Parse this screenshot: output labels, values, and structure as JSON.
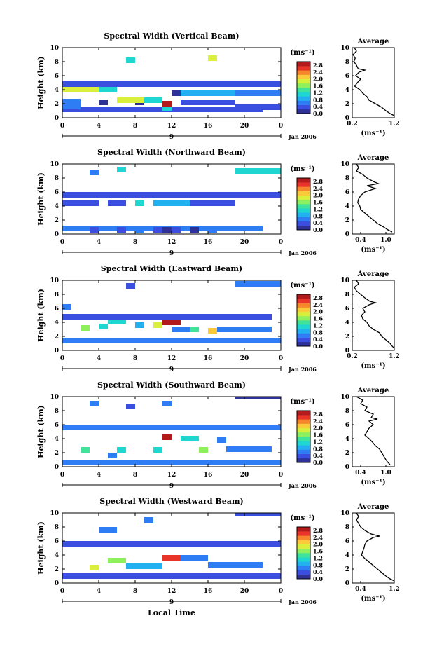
{
  "chart_data": {
    "type": "heatmap",
    "xlabel": "Local Time",
    "ylabel": "Height (km)",
    "x_range": [
      0,
      24
    ],
    "x_ticks": [
      "0",
      "4",
      "8",
      "12",
      "16",
      "20",
      "0"
    ],
    "date_labels": [
      "9",
      "Jan 2006"
    ],
    "y_range": [
      0,
      10
    ],
    "y_ticks": [
      "0",
      "2",
      "4",
      "6",
      "8",
      "10"
    ],
    "colorbar": {
      "unit": "(ms⁻¹)",
      "range": [
        0,
        3.0
      ],
      "ticks": [
        "0.0",
        "0.4",
        "0.8",
        "1.2",
        "1.6",
        "2.0",
        "2.4",
        "2.8"
      ],
      "colors": [
        "#2e3196",
        "#3a4fe0",
        "#2f7df5",
        "#22b0f0",
        "#20d6d0",
        "#3fe39a",
        "#8ef05b",
        "#d9ef3c",
        "#fbc93a",
        "#f6862c",
        "#e9342a",
        "#b21a1c"
      ]
    },
    "average_panel": {
      "title": "Average",
      "xlabel": "(ms⁻¹)",
      "y_range": [
        0,
        10
      ],
      "y_ticks": [
        "0",
        "2",
        "4",
        "6",
        "8",
        "10"
      ]
    },
    "panels": [
      {
        "title": "Spectral Width (Vertical Beam)",
        "avg_x_range": [
          0.2,
          1.2
        ],
        "avg_x_ticks": [
          "0.2",
          "1.2"
        ],
        "average_profile": [
          [
            0.25,
            10
          ],
          [
            0.3,
            9.5
          ],
          [
            0.22,
            9
          ],
          [
            0.27,
            8.5
          ],
          [
            0.24,
            8
          ],
          [
            0.3,
            7.5
          ],
          [
            0.34,
            7
          ],
          [
            0.5,
            6.8
          ],
          [
            0.36,
            6.5
          ],
          [
            0.28,
            6
          ],
          [
            0.4,
            5.5
          ],
          [
            0.32,
            5
          ],
          [
            0.26,
            4.5
          ],
          [
            0.38,
            4
          ],
          [
            0.45,
            3.5
          ],
          [
            0.55,
            3
          ],
          [
            0.6,
            2.5
          ],
          [
            0.75,
            2
          ],
          [
            0.9,
            1.5
          ],
          [
            1.0,
            1
          ],
          [
            1.1,
            0.6
          ],
          [
            1.2,
            0.3
          ]
        ],
        "cells": [
          [
            0,
            1.2,
            22,
            0.4
          ],
          [
            0,
            1.6,
            2,
            0.6
          ],
          [
            0,
            2.3,
            2,
            0.5
          ],
          [
            4,
            2.2,
            1,
            0.2
          ],
          [
            8,
            2.2,
            1,
            0.1
          ],
          [
            11,
            1.4,
            1,
            1.0
          ],
          [
            12,
            1.2,
            1,
            0.4
          ],
          [
            13,
            2.2,
            6,
            0.4
          ],
          [
            19,
            1.5,
            5,
            0.4
          ],
          [
            0,
            4.0,
            4,
            1.8
          ],
          [
            4,
            4.0,
            2,
            1.2
          ],
          [
            6,
            2.5,
            3,
            1.8
          ],
          [
            9,
            2.5,
            2,
            1.2
          ],
          [
            11,
            2.0,
            1,
            3.0
          ],
          [
            12,
            3.5,
            1,
            0.2
          ],
          [
            13,
            3.5,
            6,
            0.8
          ],
          [
            19,
            3.5,
            5,
            0.6
          ],
          [
            0,
            4.8,
            24,
            0.4
          ],
          [
            7,
            8.2,
            1,
            1.2
          ],
          [
            16,
            8.5,
            1,
            1.8
          ]
        ]
      },
      {
        "title": "Spectral Width (Northward Beam)",
        "avg_x_range": [
          0.2,
          1.2
        ],
        "avg_x_ticks": [
          "0.4",
          "1.0"
        ],
        "average_profile": [
          [
            0.3,
            10
          ],
          [
            0.35,
            9.5
          ],
          [
            0.3,
            9
          ],
          [
            0.45,
            8.5
          ],
          [
            0.55,
            8
          ],
          [
            0.7,
            7.5
          ],
          [
            0.82,
            7.2
          ],
          [
            0.55,
            6.9
          ],
          [
            0.75,
            6.5
          ],
          [
            0.5,
            6
          ],
          [
            0.4,
            5.5
          ],
          [
            0.35,
            5
          ],
          [
            0.33,
            4.5
          ],
          [
            0.38,
            4
          ],
          [
            0.4,
            3.5
          ],
          [
            0.5,
            3
          ],
          [
            0.6,
            2.5
          ],
          [
            0.7,
            2
          ],
          [
            0.8,
            1.5
          ],
          [
            0.95,
            1
          ],
          [
            1.05,
            0.6
          ],
          [
            1.15,
            0.3
          ]
        ],
        "cells": [
          [
            0,
            0.8,
            22,
            0.6
          ],
          [
            3,
            0.6,
            1,
            0.3
          ],
          [
            6,
            0.6,
            1,
            0.4
          ],
          [
            8,
            0.6,
            1,
            0.5
          ],
          [
            10,
            0.6,
            1,
            0.3
          ],
          [
            11,
            0.6,
            1,
            0.2
          ],
          [
            12,
            0.6,
            1,
            0.4
          ],
          [
            14,
            0.6,
            1,
            0.2
          ],
          [
            16,
            0.6,
            1,
            0.6
          ],
          [
            0,
            4.4,
            4,
            0.3
          ],
          [
            5,
            4.4,
            2,
            0.3
          ],
          [
            8,
            4.4,
            1,
            1.0
          ],
          [
            10,
            4.4,
            4,
            0.8
          ],
          [
            14,
            4.4,
            5,
            0.3
          ],
          [
            0,
            5.6,
            24,
            0.3
          ],
          [
            19,
            9.0,
            5,
            1.0
          ],
          [
            3,
            8.8,
            1,
            0.6
          ],
          [
            6,
            9.2,
            1,
            1.0
          ]
        ]
      },
      {
        "title": "Spectral Width (Eastward Beam)",
        "avg_x_range": [
          0.2,
          1.2
        ],
        "avg_x_ticks": [
          "0.2",
          "1.2"
        ],
        "average_profile": [
          [
            0.3,
            10
          ],
          [
            0.35,
            9.5
          ],
          [
            0.25,
            9
          ],
          [
            0.3,
            8.5
          ],
          [
            0.4,
            8
          ],
          [
            0.5,
            7.5
          ],
          [
            0.62,
            7
          ],
          [
            0.75,
            6.8
          ],
          [
            0.6,
            6.5
          ],
          [
            0.45,
            6
          ],
          [
            0.5,
            5.5
          ],
          [
            0.42,
            5
          ],
          [
            0.45,
            4.5
          ],
          [
            0.55,
            4
          ],
          [
            0.6,
            3.5
          ],
          [
            0.7,
            3
          ],
          [
            0.85,
            2.5
          ],
          [
            0.9,
            2
          ],
          [
            1.0,
            1.5
          ],
          [
            1.1,
            1
          ],
          [
            1.15,
            0.6
          ],
          [
            1.2,
            0.3
          ]
        ],
        "cells": [
          [
            0,
            1.4,
            24,
            0.6
          ],
          [
            2,
            3.2,
            1,
            1.5
          ],
          [
            4,
            3.4,
            1,
            1.0
          ],
          [
            5,
            4.2,
            2,
            1.2
          ],
          [
            8,
            3.6,
            1,
            0.8
          ],
          [
            10,
            3.6,
            1,
            1.8
          ],
          [
            11,
            4.0,
            2,
            3.5
          ],
          [
            12,
            3.0,
            2,
            0.6
          ],
          [
            14,
            3.0,
            1,
            1.4
          ],
          [
            16,
            2.8,
            1,
            2.0
          ],
          [
            17,
            3.0,
            6,
            0.6
          ],
          [
            0,
            4.8,
            23,
            0.4
          ],
          [
            19,
            9.5,
            5,
            0.5
          ],
          [
            0,
            6.2,
            1,
            0.7
          ],
          [
            7,
            9.2,
            1,
            0.3
          ]
        ]
      },
      {
        "title": "Spectral Width (Southward Beam)",
        "avg_x_range": [
          0.2,
          1.2
        ],
        "avg_x_ticks": [
          "0.4",
          "1.0"
        ],
        "average_profile": [
          [
            0.3,
            10
          ],
          [
            0.45,
            9.5
          ],
          [
            0.4,
            9
          ],
          [
            0.55,
            8.5
          ],
          [
            0.5,
            8
          ],
          [
            0.7,
            7.5
          ],
          [
            0.65,
            7
          ],
          [
            0.8,
            6.8
          ],
          [
            0.6,
            6.5
          ],
          [
            0.7,
            6
          ],
          [
            0.6,
            5.5
          ],
          [
            0.55,
            5
          ],
          [
            0.5,
            4.5
          ],
          [
            0.6,
            4
          ],
          [
            0.68,
            3.5
          ],
          [
            0.75,
            3
          ],
          [
            0.85,
            2.5
          ],
          [
            0.9,
            2
          ],
          [
            0.95,
            1.5
          ],
          [
            1.0,
            1
          ],
          [
            1.05,
            0.6
          ],
          [
            1.1,
            0.3
          ]
        ],
        "cells": [
          [
            0,
            0.6,
            24,
            0.5
          ],
          [
            2,
            2.4,
            1,
            1.4
          ],
          [
            5,
            1.6,
            1,
            0.6
          ],
          [
            6,
            2.4,
            1,
            1.0
          ],
          [
            10,
            2.4,
            1,
            1.0
          ],
          [
            11,
            4.2,
            1,
            4.3
          ],
          [
            13,
            4.0,
            2,
            1.0
          ],
          [
            15,
            2.4,
            1,
            1.6
          ],
          [
            17,
            3.8,
            1,
            0.6
          ],
          [
            18,
            2.5,
            5,
            0.5
          ],
          [
            0,
            5.6,
            24,
            0.5
          ],
          [
            19,
            10.0,
            5,
            0.2
          ],
          [
            3,
            9.0,
            1,
            0.6
          ],
          [
            7,
            8.6,
            1,
            0.4
          ],
          [
            11,
            9.0,
            1,
            0.6
          ]
        ]
      },
      {
        "title": "Spectral Width (Westward Beam)",
        "avg_x_range": [
          0.2,
          1.2
        ],
        "avg_x_ticks": [
          "0.4",
          "1.2"
        ],
        "average_profile": [
          [
            0.3,
            10
          ],
          [
            0.35,
            9.5
          ],
          [
            0.3,
            9
          ],
          [
            0.35,
            8.5
          ],
          [
            0.4,
            8
          ],
          [
            0.5,
            7.5
          ],
          [
            0.65,
            7
          ],
          [
            0.85,
            6.7
          ],
          [
            0.7,
            6.5
          ],
          [
            0.55,
            6
          ],
          [
            0.5,
            5.5
          ],
          [
            0.48,
            5
          ],
          [
            0.45,
            4.5
          ],
          [
            0.42,
            4
          ],
          [
            0.5,
            3.5
          ],
          [
            0.6,
            3
          ],
          [
            0.7,
            2.5
          ],
          [
            0.8,
            2
          ],
          [
            0.9,
            1.5
          ],
          [
            1.0,
            1
          ],
          [
            1.1,
            0.6
          ],
          [
            1.2,
            0.3
          ]
        ],
        "cells": [
          [
            0,
            1.0,
            24,
            0.4
          ],
          [
            3,
            2.2,
            1,
            1.8
          ],
          [
            5,
            3.2,
            2,
            1.5
          ],
          [
            7,
            2.4,
            4,
            0.8
          ],
          [
            11,
            3.6,
            2,
            2.5
          ],
          [
            13,
            3.6,
            3,
            0.6
          ],
          [
            16,
            2.6,
            6,
            0.5
          ],
          [
            0,
            5.6,
            24,
            0.3
          ],
          [
            19,
            10.0,
            5,
            0.3
          ],
          [
            4,
            7.6,
            2,
            0.5
          ],
          [
            9,
            9.0,
            1,
            0.7
          ]
        ]
      }
    ]
  }
}
